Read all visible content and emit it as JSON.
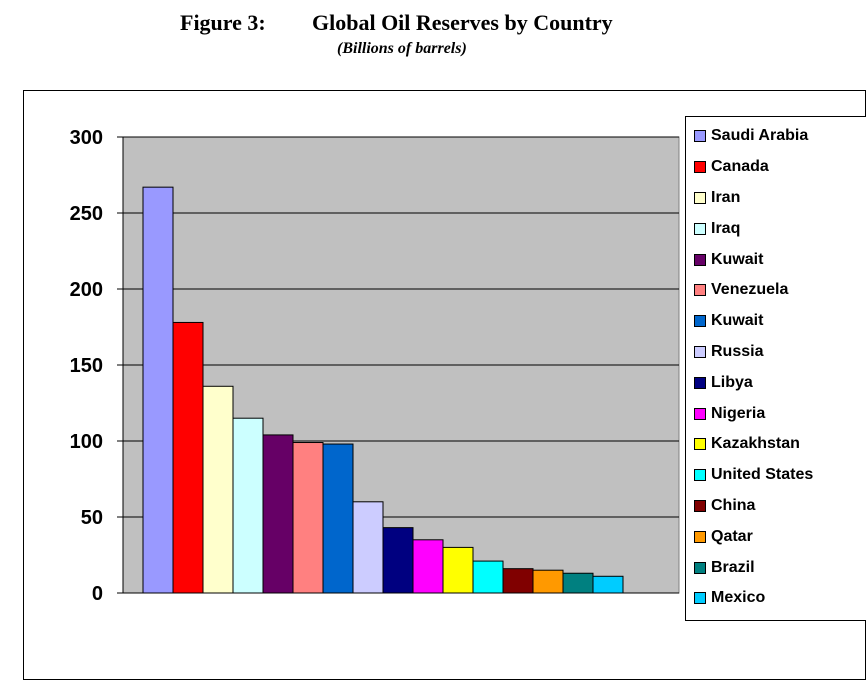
{
  "figure": {
    "number": "Figure 3:",
    "title": "Global Oil Reserves by Country",
    "subtitle": "(Billions of barrels)"
  },
  "chart_data": {
    "type": "bar",
    "title": "Global Oil Reserves by Country",
    "subtitle": "(Billions of barrels)",
    "xlabel": "",
    "ylabel": "",
    "ylim": [
      0,
      300
    ],
    "yticks": [
      "0",
      "50",
      "100",
      "150",
      "200",
      "250",
      "300"
    ],
    "grid": true,
    "legend_position": "right",
    "plot_background": "#c0c0c0",
    "categories": [
      "Saudi Arabia",
      "Canada",
      "Iran",
      "Iraq",
      "Kuwait",
      "Venezuela",
      "Kuwait",
      "Russia",
      "Libya",
      "Nigeria",
      "Kazakhstan",
      "United States",
      "China",
      "Qatar",
      "Brazil",
      "Mexico"
    ],
    "values": [
      267,
      178,
      136,
      115,
      104,
      99,
      98,
      60,
      43,
      35,
      30,
      21,
      16,
      15,
      13,
      11
    ],
    "colors": [
      "#9999ff",
      "#ff0000",
      "#ffffcc",
      "#ccffff",
      "#660066",
      "#ff8080",
      "#0066cc",
      "#ccccff",
      "#000080",
      "#ff00ff",
      "#ffff00",
      "#00ffff",
      "#800000",
      "#ff9900",
      "#008080",
      "#00ccff"
    ]
  }
}
